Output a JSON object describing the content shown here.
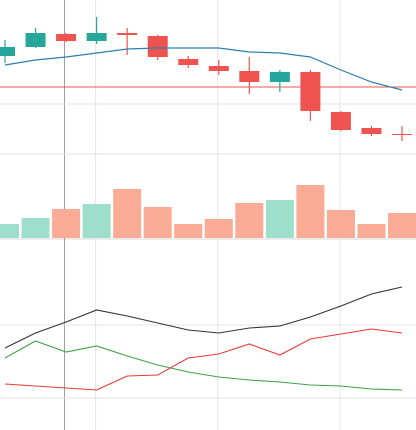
{
  "chart_data": [
    {
      "type": "candlestick",
      "open": [
        184,
        193,
        206,
        199,
        207,
        204,
        181,
        174,
        169,
        158,
        168,
        128,
        112,
        106
      ],
      "high": [
        200,
        212,
        207,
        223,
        212,
        205,
        184,
        180,
        183,
        170,
        170,
        129,
        114,
        114
      ],
      "low": [
        177,
        192,
        198,
        196,
        185,
        180,
        172,
        165,
        146,
        148,
        119,
        109,
        104,
        99
      ],
      "close": [
        193,
        207,
        199,
        207,
        205,
        183,
        175,
        169,
        158,
        168,
        129,
        110,
        106,
        105
      ],
      "up_color": "#26a69a",
      "down_color": "#ef5350",
      "series": [
        {
          "color": "#2f7eb0",
          "values": [
            175,
            180,
            183,
            187,
            191,
            192,
            192,
            192,
            188,
            187,
            183,
            170,
            158,
            150
          ]
        }
      ],
      "price_line": 153,
      "price_line_color": "#ef5350",
      "ylim": [
        0,
        240
      ],
      "yticks": [
        86,
        136
      ],
      "grid": true
    },
    {
      "type": "bar",
      "values": [
        14,
        20,
        29,
        34,
        49,
        31,
        14,
        19,
        35,
        38,
        53,
        28,
        14,
        25
      ],
      "colors": [
        "#9ddfca",
        "#9ddfca",
        "#f9ab96",
        "#9ddfca",
        "#f9ab96",
        "#f9ab96",
        "#f9ab96",
        "#f9ab96",
        "#f9ab96",
        "#9ddfca",
        "#f9ab96",
        "#f9ab96",
        "#f9ab96",
        "#f9ab96"
      ],
      "ylim": [
        0,
        238
      ]
    },
    {
      "type": "line",
      "series": [
        {
          "color": "#333333",
          "values": [
            82,
            97,
            108,
            120,
            114,
            107,
            100,
            97,
            102,
            104,
            113,
            124,
            136,
            143
          ]
        },
        {
          "color": "#43a047",
          "values": [
            72,
            89,
            78,
            84,
            74,
            65,
            58,
            53,
            50,
            48,
            45,
            44,
            41,
            40
          ]
        },
        {
          "color": "#e53935",
          "values": [
            46,
            44,
            42,
            40,
            54,
            55,
            72,
            76,
            86,
            75,
            91,
            96,
            101,
            97
          ]
        }
      ],
      "ylim": [
        0,
        190
      ],
      "yticks": [
        32,
        105
      ],
      "grid": true
    }
  ]
}
